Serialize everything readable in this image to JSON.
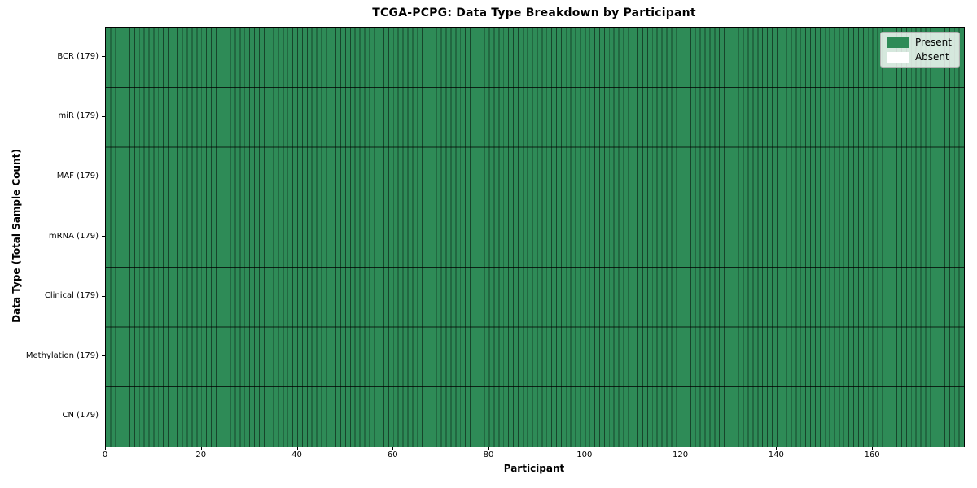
{
  "chart_data": {
    "type": "heatmap",
    "title": "TCGA-PCPG: Data Type Breakdown by Participant",
    "xlabel": "Participant",
    "ylabel": "Data Type (Total Sample Count)",
    "x_range": [
      0,
      179
    ],
    "x_ticks": [
      0,
      20,
      40,
      60,
      80,
      100,
      120,
      140,
      160
    ],
    "n_participants": 179,
    "categories": [
      "BCR (179)",
      "miR (179)",
      "MAF (179)",
      "mRNA (179)",
      "Clinical (179)",
      "Methylation (179)",
      "CN (179)"
    ],
    "rows": [
      {
        "label": "BCR (179)",
        "data_type": "BCR",
        "total_sample_count": 179,
        "present_count": 179,
        "absent_count": 0
      },
      {
        "label": "miR (179)",
        "data_type": "miR",
        "total_sample_count": 179,
        "present_count": 179,
        "absent_count": 0
      },
      {
        "label": "MAF (179)",
        "data_type": "MAF",
        "total_sample_count": 179,
        "present_count": 179,
        "absent_count": 0
      },
      {
        "label": "mRNA (179)",
        "data_type": "mRNA",
        "total_sample_count": 179,
        "present_count": 179,
        "absent_count": 0
      },
      {
        "label": "Clinical (179)",
        "data_type": "Clinical",
        "total_sample_count": 179,
        "present_count": 179,
        "absent_count": 0
      },
      {
        "label": "Methylation (179)",
        "data_type": "Methylation",
        "total_sample_count": 179,
        "present_count": 179,
        "absent_count": 0
      },
      {
        "label": "CN (179)",
        "data_type": "CN",
        "total_sample_count": 179,
        "present_count": 179,
        "absent_count": 0
      }
    ],
    "legend": {
      "position": "upper right",
      "entries": [
        {
          "label": "Present",
          "color": "#2e8b57"
        },
        {
          "label": "Absent",
          "color": "#ffffff"
        }
      ]
    },
    "colors": {
      "present": "#2e8b57",
      "absent": "#ffffff",
      "cell_edge_vertical": "rgba(0,0,0,0.5)",
      "cell_edge_horizontal": "rgba(0,0,0,0.75)",
      "spine": "#000000"
    },
    "grid": true
  }
}
